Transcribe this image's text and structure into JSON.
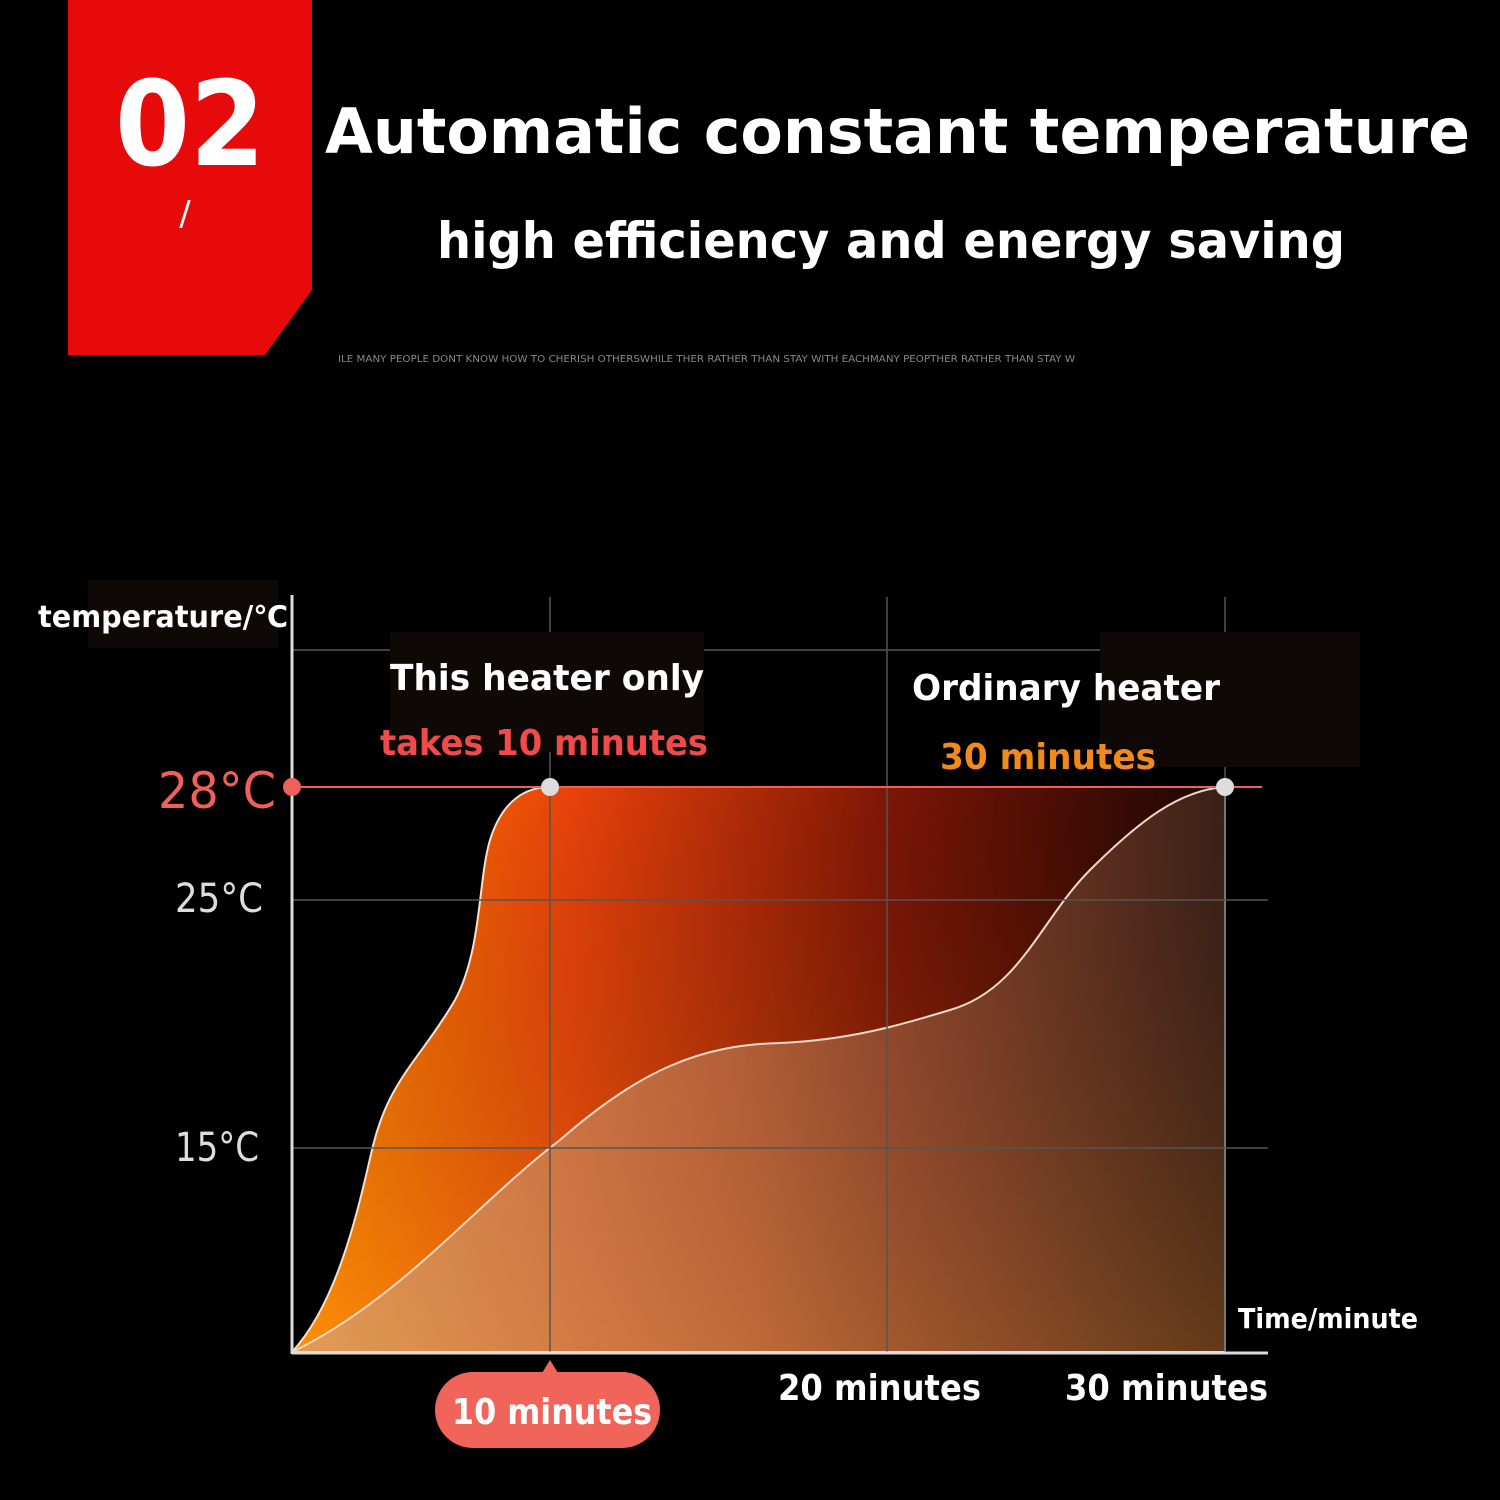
{
  "badge": {
    "number": "02",
    "mark": "/"
  },
  "header": {
    "title": "Automatic constant temperature",
    "subtitle": "high efficiency and energy saving",
    "tagline": "ILE MANY PEOPLE DONT KNOW HOW TO CHERISH OTHERSWHILE THER RATHER THAN STAY WITH EACHMANY PEOPTHER RATHER THAN STAY W"
  },
  "chart": {
    "y_axis_label": "temperature/℃",
    "y_labels": [
      "28°C",
      "25°C",
      "15°C"
    ],
    "x_axis_label": "Time/minute",
    "x_labels": [
      "10 minutes",
      "20 minutes",
      "30 minutes"
    ],
    "this_heater": [
      "This heater only",
      "takes 10 minutes"
    ],
    "ordinary_heater": [
      "Ordinary heater",
      "30 minutes"
    ]
  }
}
